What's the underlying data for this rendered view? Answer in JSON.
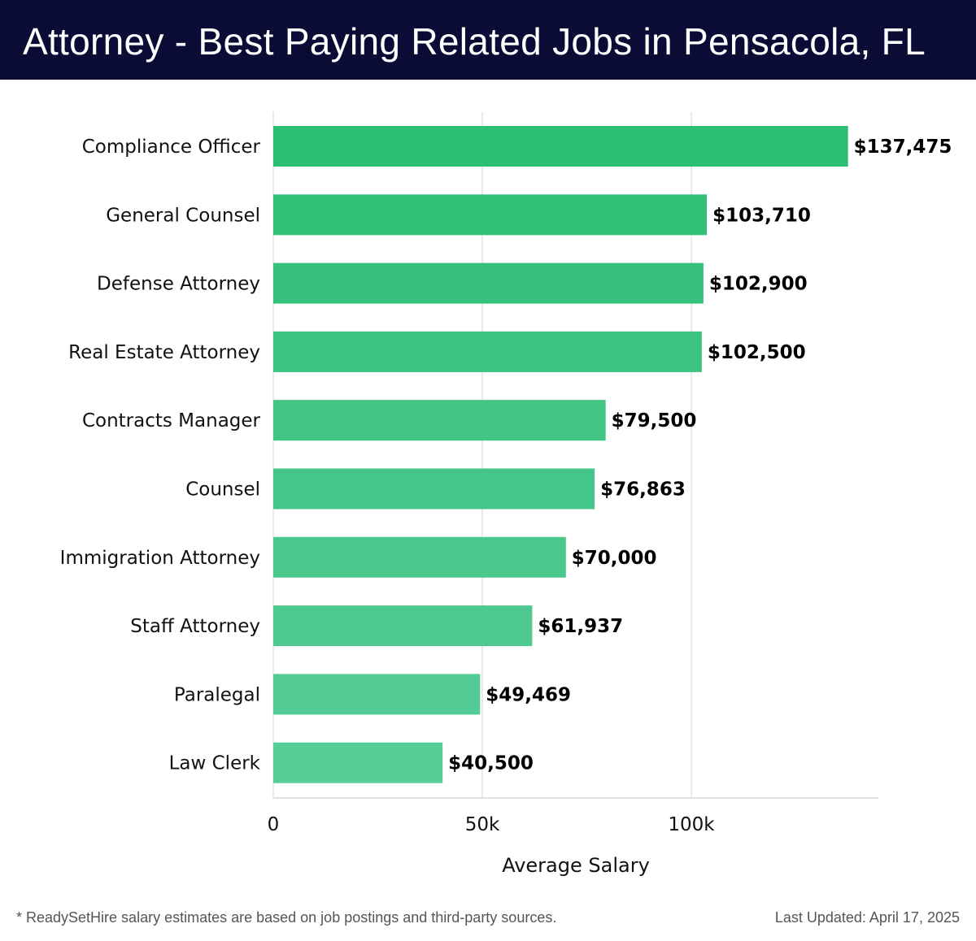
{
  "header": {
    "title": "Attorney - Best Paying Related Jobs in Pensacola, FL"
  },
  "chart_data": {
    "type": "bar",
    "orientation": "horizontal",
    "title": "Attorney - Best Paying Related Jobs in Pensacola, FL",
    "categories": [
      "Compliance Officer",
      "General Counsel",
      "Defense Attorney",
      "Real Estate Attorney",
      "Contracts Manager",
      "Counsel",
      "Immigration Attorney",
      "Staff Attorney",
      "Paralegal",
      "Law Clerk"
    ],
    "values": [
      137475,
      103710,
      102900,
      102500,
      79500,
      76863,
      70000,
      61937,
      49469,
      40500
    ],
    "value_labels": [
      "$137,475",
      "$103,710",
      "$102,900",
      "$102,500",
      "$79,500",
      "$76,863",
      "$70,000",
      "$61,937",
      "$49,469",
      "$40,500"
    ],
    "xlabel": "Average Salary",
    "ylabel": "",
    "xlim": [
      0,
      145000
    ],
    "xticks": [
      0,
      50000,
      100000
    ],
    "xtick_labels": [
      "0",
      "50k",
      "100k"
    ],
    "grid": true,
    "colors": {
      "start": "#2dbe75",
      "end": "#57cd98"
    }
  },
  "footer": {
    "note": "* ReadySetHire salary estimates are based on job postings and third-party sources.",
    "updated": "Last Updated: April 17, 2025"
  }
}
